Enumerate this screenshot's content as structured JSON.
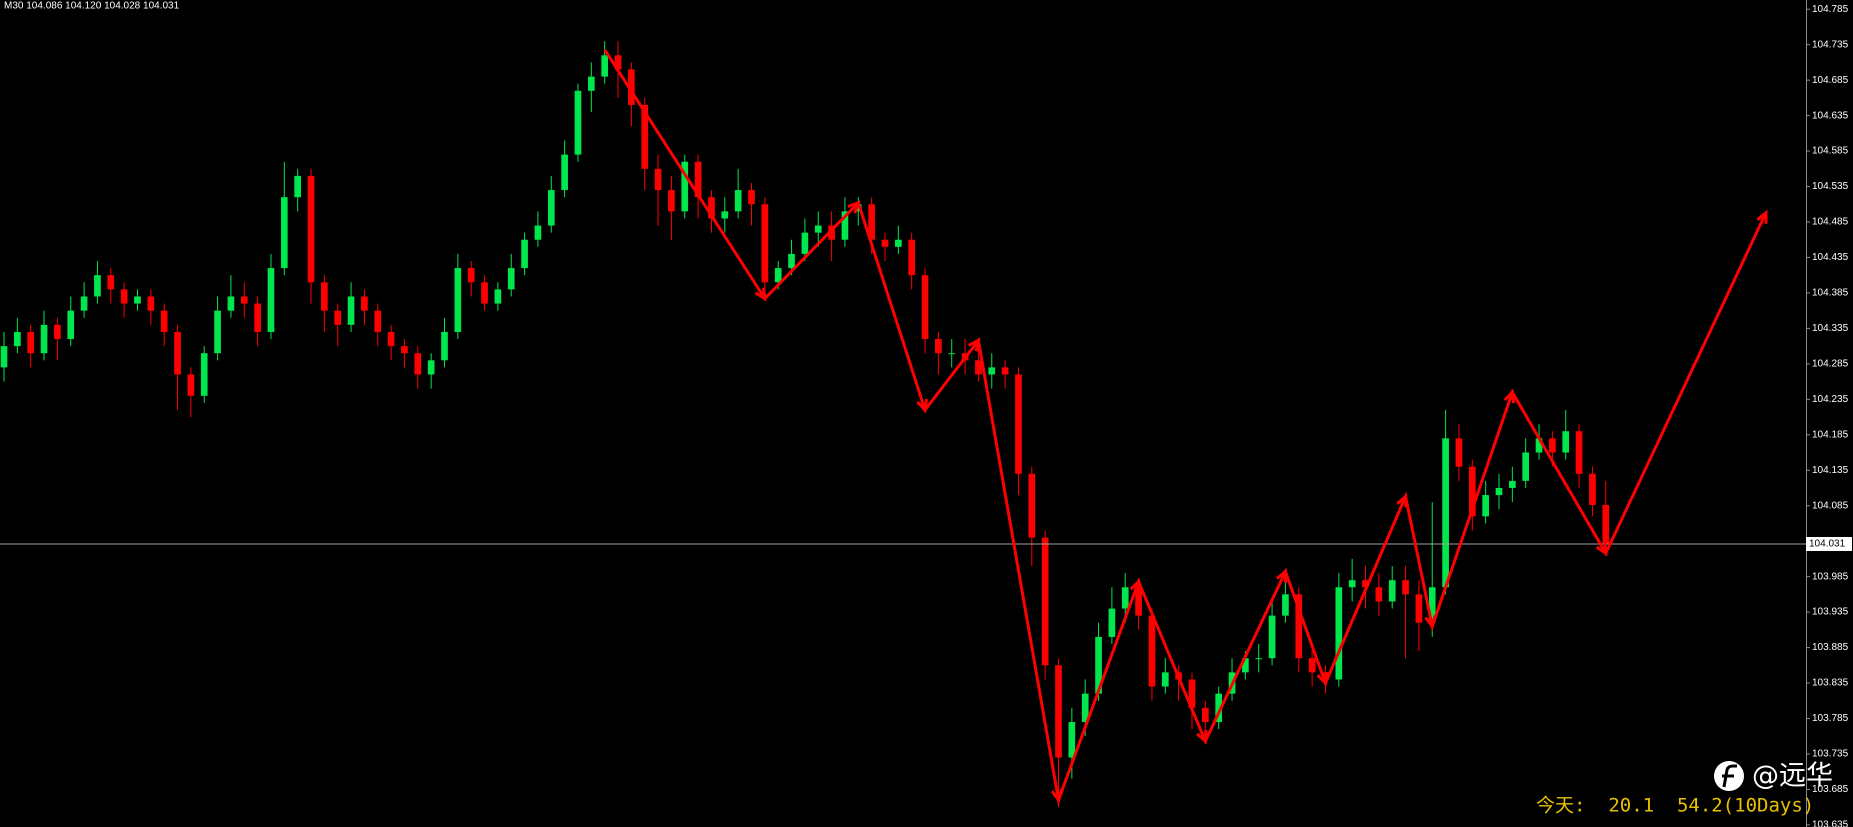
{
  "chart_data": {
    "type": "candlestick",
    "title": "M30 104.086 104.120 104.028 104.031",
    "x": [
      0,
      1,
      2,
      3,
      4,
      5,
      6,
      7,
      8,
      9,
      10,
      11,
      12,
      13,
      14,
      15,
      16,
      17,
      18,
      19,
      20,
      21,
      22,
      23,
      24,
      25,
      26,
      27,
      28,
      29,
      30,
      31,
      32,
      33,
      34,
      35,
      36,
      37,
      38,
      39,
      40,
      41,
      42,
      43,
      44,
      45,
      46,
      47,
      48,
      49,
      50,
      51,
      52,
      53,
      54,
      55,
      56,
      57,
      58,
      59,
      60,
      61,
      62,
      63,
      64,
      65,
      66,
      67,
      68,
      69,
      70,
      71,
      72,
      73,
      74,
      75,
      76,
      77,
      78,
      79,
      80,
      81,
      82,
      83,
      84,
      85,
      86,
      87,
      88,
      89,
      90,
      91,
      92,
      93,
      94,
      95,
      96,
      97,
      98,
      99,
      100,
      101,
      102,
      103,
      104,
      105,
      106,
      107,
      108,
      109,
      110,
      111,
      112,
      113,
      114,
      115,
      116,
      117,
      118,
      119,
      120
    ],
    "open": [
      104.28,
      104.31,
      104.33,
      104.3,
      104.34,
      104.32,
      104.36,
      104.38,
      104.41,
      104.39,
      104.37,
      104.38,
      104.36,
      104.33,
      104.27,
      104.24,
      104.3,
      104.36,
      104.38,
      104.37,
      104.33,
      104.42,
      104.52,
      104.55,
      104.4,
      104.36,
      104.34,
      104.38,
      104.36,
      104.33,
      104.31,
      104.3,
      104.27,
      104.29,
      104.33,
      104.42,
      104.4,
      104.37,
      104.39,
      104.42,
      104.46,
      104.48,
      104.53,
      104.58,
      104.67,
      104.69,
      104.72,
      104.7,
      104.65,
      104.56,
      104.53,
      104.5,
      104.57,
      104.52,
      104.49,
      104.5,
      104.53,
      104.51,
      104.4,
      104.42,
      104.44,
      104.47,
      104.48,
      104.46,
      104.5,
      104.51,
      104.46,
      104.45,
      104.46,
      104.41,
      104.32,
      104.3,
      104.3,
      104.29,
      104.27,
      104.28,
      104.27,
      104.13,
      104.04,
      103.86,
      103.73,
      103.78,
      103.82,
      103.9,
      103.94,
      103.97,
      103.93,
      103.83,
      103.85,
      103.84,
      103.8,
      103.78,
      103.82,
      103.85,
      103.87,
      103.87,
      103.93,
      103.96,
      103.87,
      103.85,
      103.84,
      103.97,
      103.98,
      103.97,
      103.95,
      103.98,
      103.96,
      103.92,
      103.97,
      104.18,
      104.14,
      104.07,
      104.1,
      104.11,
      104.12,
      104.16,
      104.18,
      104.16,
      104.19,
      104.13,
      104.086
    ],
    "high": [
      104.33,
      104.35,
      104.34,
      104.36,
      104.35,
      104.38,
      104.4,
      104.43,
      104.42,
      104.4,
      104.39,
      104.39,
      104.37,
      104.34,
      104.28,
      104.31,
      104.38,
      104.41,
      104.4,
      104.38,
      104.44,
      104.57,
      104.56,
      104.56,
      104.41,
      104.37,
      104.4,
      104.39,
      104.37,
      104.34,
      104.32,
      104.31,
      104.3,
      104.35,
      104.44,
      104.43,
      104.41,
      104.4,
      104.44,
      104.47,
      104.5,
      104.55,
      104.6,
      104.68,
      104.71,
      104.74,
      104.74,
      104.71,
      104.66,
      104.58,
      104.55,
      104.58,
      104.58,
      104.53,
      104.52,
      104.56,
      104.54,
      104.52,
      104.43,
      104.46,
      104.49,
      104.5,
      104.5,
      104.52,
      104.52,
      104.52,
      104.47,
      104.48,
      104.47,
      104.42,
      104.33,
      104.32,
      104.32,
      104.32,
      104.3,
      104.29,
      104.28,
      104.14,
      104.05,
      103.87,
      103.8,
      103.84,
      103.92,
      103.97,
      103.99,
      103.98,
      103.94,
      103.87,
      103.86,
      103.85,
      103.81,
      103.83,
      103.87,
      103.88,
      103.89,
      103.95,
      103.99,
      103.97,
      103.88,
      103.86,
      103.99,
      104.01,
      104.0,
      103.99,
      104.0,
      104.0,
      103.98,
      104.09,
      104.22,
      104.2,
      104.15,
      104.12,
      104.13,
      104.14,
      104.18,
      104.2,
      104.19,
      104.22,
      104.2,
      104.14,
      104.12
    ],
    "low": [
      104.26,
      104.3,
      104.28,
      104.29,
      104.29,
      104.31,
      104.35,
      104.37,
      104.37,
      104.35,
      104.36,
      104.34,
      104.31,
      104.22,
      104.21,
      104.23,
      104.29,
      104.35,
      104.35,
      104.31,
      104.32,
      104.41,
      104.5,
      104.37,
      104.33,
      104.31,
      104.33,
      104.34,
      104.31,
      104.29,
      104.28,
      104.25,
      104.25,
      104.28,
      104.32,
      104.38,
      104.36,
      104.36,
      104.38,
      104.41,
      104.45,
      104.47,
      104.52,
      104.57,
      104.64,
      104.68,
      104.66,
      104.62,
      104.53,
      104.48,
      104.46,
      104.49,
      104.49,
      104.47,
      104.47,
      104.49,
      104.48,
      104.38,
      104.39,
      104.41,
      104.43,
      104.45,
      104.43,
      104.45,
      104.48,
      104.44,
      104.43,
      104.44,
      104.39,
      104.3,
      104.27,
      104.28,
      104.27,
      104.26,
      104.25,
      104.25,
      104.1,
      104.0,
      103.84,
      103.66,
      103.7,
      103.76,
      103.81,
      103.89,
      103.92,
      103.91,
      103.81,
      103.82,
      103.81,
      103.77,
      103.75,
      103.77,
      103.81,
      103.84,
      103.85,
      103.86,
      103.92,
      103.85,
      103.83,
      103.82,
      103.83,
      103.95,
      103.94,
      103.93,
      103.94,
      103.87,
      103.88,
      103.9,
      103.96,
      104.12,
      104.05,
      104.06,
      104.08,
      104.09,
      104.11,
      104.15,
      104.14,
      104.15,
      104.11,
      104.07,
      104.028
    ],
    "close": [
      104.31,
      104.33,
      104.3,
      104.34,
      104.32,
      104.36,
      104.38,
      104.41,
      104.39,
      104.37,
      104.38,
      104.36,
      104.33,
      104.27,
      104.24,
      104.3,
      104.36,
      104.38,
      104.37,
      104.33,
      104.42,
      104.52,
      104.55,
      104.4,
      104.36,
      104.34,
      104.38,
      104.36,
      104.33,
      104.31,
      104.3,
      104.27,
      104.29,
      104.33,
      104.42,
      104.4,
      104.37,
      104.39,
      104.42,
      104.46,
      104.48,
      104.53,
      104.58,
      104.67,
      104.69,
      104.72,
      104.7,
      104.65,
      104.56,
      104.53,
      104.5,
      104.57,
      104.52,
      104.49,
      104.5,
      104.53,
      104.51,
      104.4,
      104.42,
      104.44,
      104.47,
      104.48,
      104.46,
      104.5,
      104.51,
      104.46,
      104.45,
      104.46,
      104.41,
      104.32,
      104.3,
      104.3,
      104.29,
      104.27,
      104.28,
      104.27,
      104.13,
      104.04,
      103.86,
      103.73,
      103.78,
      103.82,
      103.9,
      103.94,
      103.97,
      103.93,
      103.83,
      103.85,
      103.84,
      103.8,
      103.78,
      103.82,
      103.85,
      103.87,
      103.87,
      103.93,
      103.96,
      103.87,
      103.85,
      103.84,
      103.97,
      103.98,
      103.97,
      103.95,
      103.98,
      103.96,
      103.92,
      103.97,
      104.18,
      104.14,
      104.07,
      104.1,
      104.11,
      104.12,
      104.16,
      104.18,
      104.16,
      104.19,
      104.13,
      104.086,
      104.031
    ],
    "up_color": "#00e64d",
    "down_color": "#ff0000",
    "zigzag": {
      "color": "#ff0000",
      "x": [
        45,
        57,
        64,
        69,
        73,
        79,
        85,
        90,
        96,
        99,
        105,
        107,
        113,
        120,
        132
      ],
      "values": [
        104.728,
        104.377,
        104.512,
        104.22,
        104.318,
        103.67,
        103.978,
        103.753,
        103.992,
        103.835,
        104.098,
        103.915,
        104.245,
        104.018,
        104.498
      ]
    },
    "current_price": 104.031,
    "xlim": [
      -0.3,
      135
    ],
    "ylim": [
      103.632,
      104.798
    ],
    "yticks": [
      104.785,
      104.735,
      104.685,
      104.635,
      104.585,
      104.535,
      104.485,
      104.435,
      104.385,
      104.335,
      104.285,
      104.235,
      104.185,
      104.135,
      104.085,
      104.035,
      103.985,
      103.935,
      103.885,
      103.835,
      103.785,
      103.735,
      103.685,
      103.635
    ],
    "annotation": "今天:  20.1  54.2(10Days)",
    "watermark": "@远华"
  }
}
